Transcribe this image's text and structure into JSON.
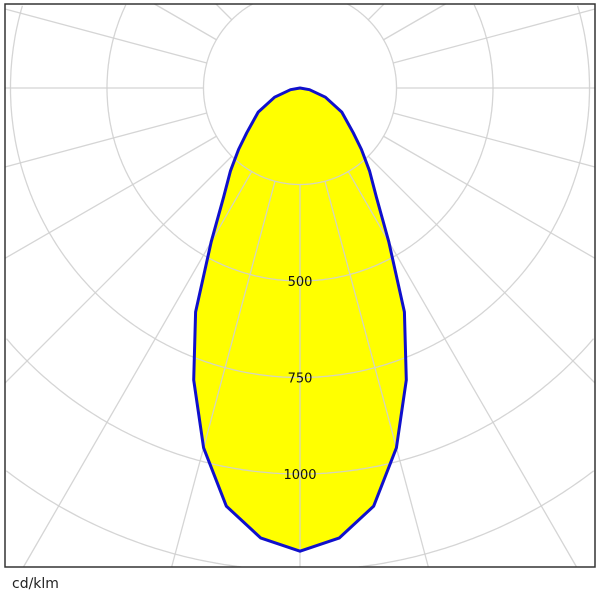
{
  "chart_data": {
    "type": "polar",
    "unit_label": "cd/klm",
    "radial_ticks": [
      250,
      500,
      750,
      1000,
      1250
    ],
    "radial_tick_labels": [
      "500",
      "750",
      "1000"
    ],
    "angle_grid_step_deg": 15,
    "rlim": [
      0,
      1250
    ],
    "grid": true,
    "series": [
      {
        "angles_deg": [
          0,
          5,
          10,
          15,
          20,
          25,
          30,
          35,
          40,
          45,
          50,
          60,
          70,
          80,
          90
        ],
        "values": [
          1200,
          1170,
          1100,
          965,
          805,
          640,
          460,
          345,
          280,
          225,
          180,
          125,
          70,
          25,
          0
        ]
      }
    ],
    "colors": {
      "fill": "#ffff00",
      "line": "#1010cc",
      "grid": "#d0d0d0",
      "frame": "#333333"
    }
  }
}
